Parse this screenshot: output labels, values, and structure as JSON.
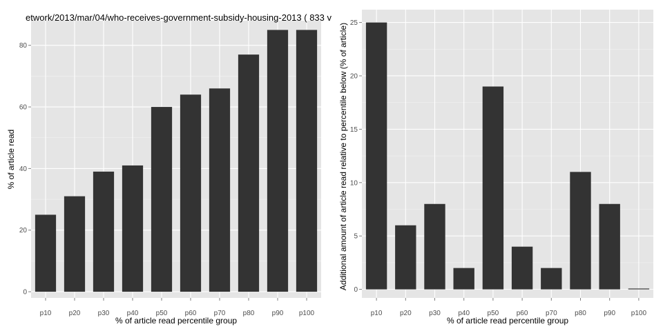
{
  "title": "etwork/2013/mar/04/who-receives-government-subsidy-housing-2013 ( 833 v",
  "colors": {
    "panel_bg": "#e5e5e5",
    "grid_major": "#ffffff",
    "grid_minor": "#f2f2f2",
    "bar": "#333333"
  },
  "chart_data": [
    {
      "type": "bar",
      "categories": [
        "p10",
        "p20",
        "p30",
        "p40",
        "p50",
        "p60",
        "p70",
        "p80",
        "p90",
        "p100"
      ],
      "values": [
        25,
        31,
        39,
        41,
        60,
        64,
        66,
        77,
        85,
        85
      ],
      "xlabel": "% of article read percentile group",
      "ylabel": "% of article read",
      "ylim": [
        -2,
        88
      ],
      "yticks": [
        0,
        20,
        40,
        60,
        80
      ],
      "grid": true
    },
    {
      "type": "bar",
      "categories": [
        "p10",
        "p20",
        "p30",
        "p40",
        "p50",
        "p60",
        "p70",
        "p80",
        "p90",
        "p100"
      ],
      "values": [
        25,
        6,
        8,
        2,
        19,
        4,
        2,
        11,
        8,
        0
      ],
      "xlabel": "% of article read percentile group",
      "ylabel": "Additional amount of article read relative to percentile below (% of article)",
      "ylim": [
        -0.8,
        26.2
      ],
      "yticks": [
        0,
        5,
        10,
        15,
        20,
        25
      ],
      "grid": true
    }
  ]
}
